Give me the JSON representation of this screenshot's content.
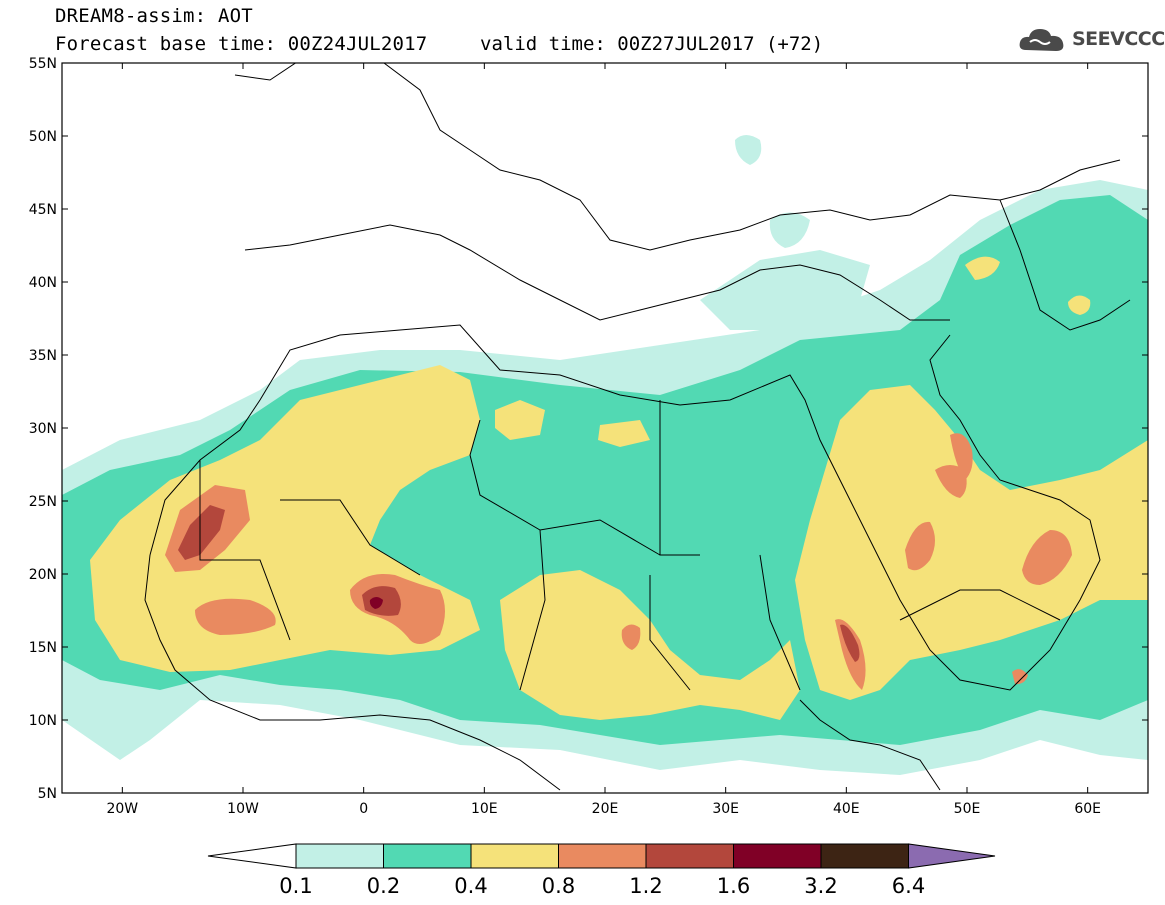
{
  "header": {
    "title": "DREAM8-assim: AOT",
    "base_time": "Forecast base time: 00Z24JUL2017",
    "valid_time": "valid time: 00Z27JUL2017 (+72)"
  },
  "logo": {
    "text": "SEEVCCC",
    "icon": "cloud-icon"
  },
  "map": {
    "lon_range": [
      -25,
      65
    ],
    "lat_range": [
      5,
      55
    ],
    "lat_labels": [
      "55N",
      "50N",
      "45N",
      "40N",
      "35N",
      "30N",
      "25N",
      "20N",
      "15N",
      "10N",
      "5N"
    ],
    "lon_labels": [
      "20W",
      "10W",
      "0",
      "10E",
      "20E",
      "30E",
      "40E",
      "50E",
      "60E"
    ]
  },
  "colorbar": {
    "labels": [
      "0.1",
      "0.2",
      "0.4",
      "0.8",
      "1.2",
      "1.6",
      "3.2",
      "6.4"
    ],
    "colors": [
      "#ffffff",
      "#c2f0e6",
      "#52d9b3",
      "#f5e27a",
      "#e98a60",
      "#b3473c",
      "#800026",
      "#3d2414",
      "#8b6bb0"
    ]
  }
}
